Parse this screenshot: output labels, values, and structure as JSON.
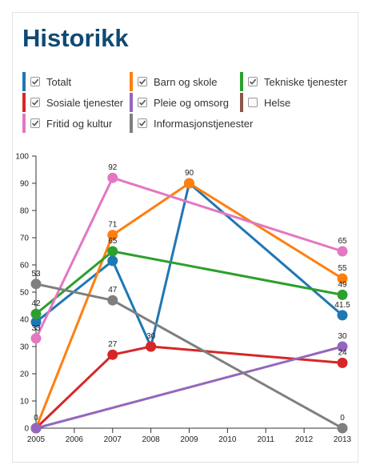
{
  "title": "Historikk",
  "legend": [
    {
      "label": "Totalt",
      "color": "#1f77b4",
      "checked": true
    },
    {
      "label": "Barn og skole",
      "color": "#ff7f0e",
      "checked": true
    },
    {
      "label": "Tekniske tjenester",
      "color": "#2ca02c",
      "checked": true
    },
    {
      "label": "Sosiale tjenester",
      "color": "#d62728",
      "checked": true
    },
    {
      "label": "Pleie og omsorg",
      "color": "#9467bd",
      "checked": true
    },
    {
      "label": "Helse",
      "color": "#8c564b",
      "checked": false
    },
    {
      "label": "Fritid og kultur",
      "color": "#e377c2",
      "checked": true
    },
    {
      "label": "Informasjonstjenester",
      "color": "#7f7f7f",
      "checked": true
    }
  ],
  "chart_data": {
    "type": "line",
    "title": "",
    "xlabel": "",
    "ylabel": "",
    "x_ticks": [
      "2005",
      "2006",
      "2007",
      "2008",
      "2009",
      "2010",
      "2011",
      "2012",
      "2013"
    ],
    "xlim": [
      2005,
      2013
    ],
    "ylim": [
      0,
      100
    ],
    "y_ticks": [
      "0",
      "10",
      "20",
      "30",
      "40",
      "50",
      "60",
      "70",
      "80",
      "90",
      "100"
    ],
    "grid": false,
    "series": [
      {
        "name": "Totalt",
        "color": "#1f77b4",
        "points": [
          [
            2005,
            39
          ],
          [
            2007,
            61.5
          ],
          [
            2008,
            30
          ],
          [
            2009,
            90
          ],
          [
            2013,
            41.5
          ]
        ],
        "labels": [
          "",
          "",
          "",
          "",
          "41.5"
        ]
      },
      {
        "name": "Barn og skole",
        "color": "#ff7f0e",
        "points": [
          [
            2005,
            0
          ],
          [
            2007,
            71
          ],
          [
            2009,
            90
          ],
          [
            2013,
            55
          ]
        ],
        "labels": [
          "0",
          "71",
          "90",
          "55"
        ]
      },
      {
        "name": "Tekniske tjenester",
        "color": "#2ca02c",
        "points": [
          [
            2005,
            42
          ],
          [
            2007,
            65
          ],
          [
            2013,
            49
          ]
        ],
        "labels": [
          "42",
          "65",
          "49"
        ]
      },
      {
        "name": "Sosiale tjenester",
        "color": "#d62728",
        "points": [
          [
            2005,
            0
          ],
          [
            2007,
            27
          ],
          [
            2008,
            30
          ],
          [
            2013,
            24
          ]
        ],
        "labels": [
          "",
          "27",
          "30",
          "24"
        ]
      },
      {
        "name": "Pleie og omsorg",
        "color": "#9467bd",
        "points": [
          [
            2005,
            0
          ],
          [
            2013,
            30
          ]
        ],
        "labels": [
          "",
          "30"
        ]
      },
      {
        "name": "Fritid og kultur",
        "color": "#e377c2",
        "points": [
          [
            2005,
            33
          ],
          [
            2007,
            92
          ],
          [
            2013,
            65
          ]
        ],
        "labels": [
          "33",
          "92",
          "65"
        ]
      },
      {
        "name": "Informasjonstjenester",
        "color": "#7f7f7f",
        "points": [
          [
            2005,
            53
          ],
          [
            2007,
            47
          ],
          [
            2013,
            0
          ]
        ],
        "labels": [
          "53",
          "47",
          "0"
        ]
      }
    ]
  }
}
